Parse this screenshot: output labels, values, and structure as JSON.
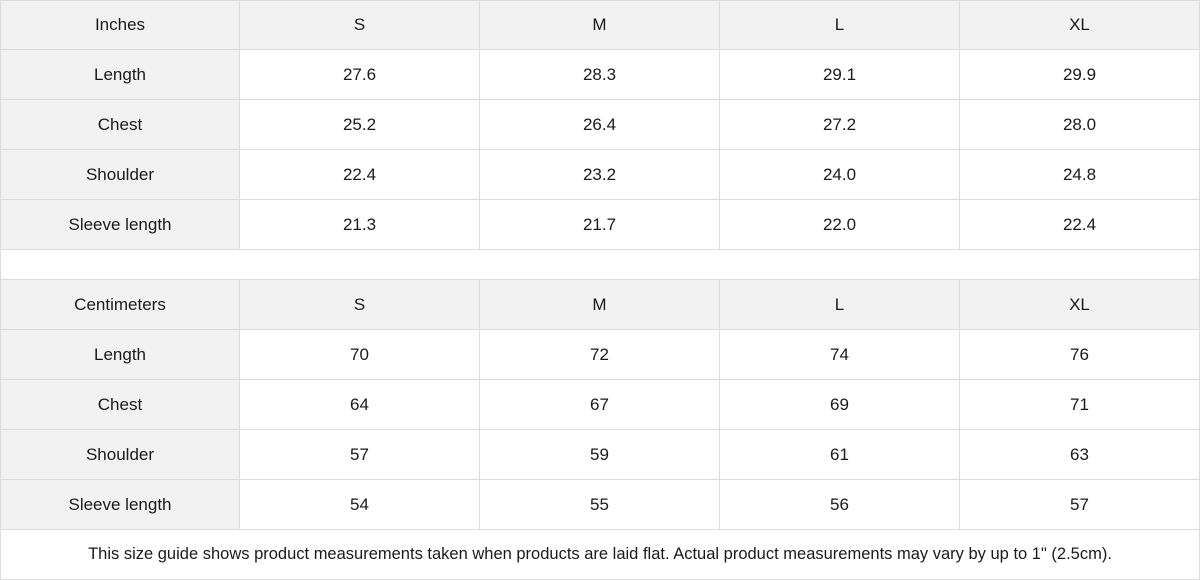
{
  "tables": [
    {
      "unit": "Inches",
      "sizes": [
        "S",
        "M",
        "L",
        "XL"
      ],
      "rows": [
        {
          "label": "Length",
          "values": [
            "27.6",
            "28.3",
            "29.1",
            "29.9"
          ]
        },
        {
          "label": "Chest",
          "values": [
            "25.2",
            "26.4",
            "27.2",
            "28.0"
          ]
        },
        {
          "label": "Shoulder",
          "values": [
            "22.4",
            "23.2",
            "24.0",
            "24.8"
          ]
        },
        {
          "label": "Sleeve length",
          "values": [
            "21.3",
            "21.7",
            "22.0",
            "22.4"
          ]
        }
      ]
    },
    {
      "unit": "Centimeters",
      "sizes": [
        "S",
        "M",
        "L",
        "XL"
      ],
      "rows": [
        {
          "label": "Length",
          "values": [
            "70",
            "72",
            "74",
            "76"
          ]
        },
        {
          "label": "Chest",
          "values": [
            "64",
            "67",
            "69",
            "71"
          ]
        },
        {
          "label": "Shoulder",
          "values": [
            "57",
            "59",
            "61",
            "63"
          ]
        },
        {
          "label": "Sleeve length",
          "values": [
            "54",
            "55",
            "56",
            "57"
          ]
        }
      ]
    }
  ],
  "note": "This size guide shows product measurements taken when products are laid flat.  Actual product measurements may vary by up to 1\" (2.5cm).",
  "colors": {
    "header_bg": "#f2f2f2",
    "border": "#dcdcdc"
  }
}
